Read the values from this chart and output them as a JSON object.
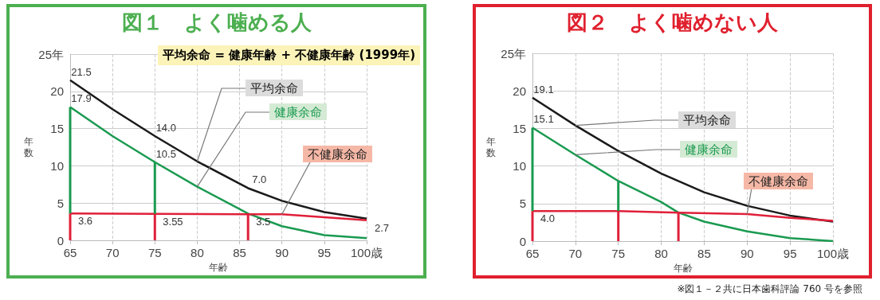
{
  "chart_data": [
    {
      "type": "line",
      "title": "図１　よく噛める人",
      "xlabel": "年齢",
      "ylabel": "年数",
      "annotations": [
        "平均余命 = 健康年齢 + 不健康年齢",
        "(1999年)"
      ],
      "xlim": [
        65,
        100
      ],
      "xticks": [
        65,
        70,
        75,
        80,
        85,
        90,
        95,
        {
          "value": 100,
          "label": "100歳"
        }
      ],
      "ylim": [
        0,
        25
      ],
      "yticks": [
        0,
        5,
        10,
        15,
        20,
        {
          "value": 25,
          "label": "25年"
        }
      ],
      "grid": true,
      "legend": false,
      "marker": "none",
      "series": [
        {
          "name": "平均余命",
          "color": "#1a1a1a",
          "x": [
            65,
            70,
            75,
            80,
            86,
            90,
            95,
            100
          ],
          "values": [
            21.5,
            17.6,
            14.0,
            10.6,
            7.0,
            5.3,
            3.8,
            2.9
          ],
          "value_labels": [
            "21.5",
            null,
            "14.0",
            null,
            "7.0",
            null,
            null,
            null
          ]
        },
        {
          "name": "健康余命",
          "color": "#1a9a50",
          "x": [
            65,
            70,
            75,
            80,
            86,
            90,
            95,
            100
          ],
          "values": [
            17.9,
            14.0,
            10.5,
            7.2,
            3.6,
            1.9,
            0.7,
            0.3
          ],
          "value_labels": [
            "17.9",
            null,
            "10.5",
            null,
            null,
            null,
            null,
            null
          ]
        },
        {
          "name": "不健康余命",
          "color": "#e0203a",
          "x": [
            65,
            75,
            86,
            90,
            95,
            100
          ],
          "values": [
            3.6,
            3.55,
            3.5,
            3.5,
            3.1,
            2.7
          ],
          "value_labels": [
            "3.6",
            "3.55",
            "3.5",
            null,
            null,
            "2.7"
          ]
        },
        {
          "color": "#1a9a50",
          "x": [
            65,
            65
          ],
          "values": [
            3.6,
            17.9
          ]
        },
        {
          "color": "#1a9a50",
          "x": [
            75,
            75
          ],
          "values": [
            3.55,
            10.5
          ]
        },
        {
          "color": "#e0203a",
          "x": [
            65,
            65
          ],
          "values": [
            0,
            3.6
          ]
        },
        {
          "color": "#e0203a",
          "x": [
            75,
            75
          ],
          "values": [
            0,
            3.55
          ]
        },
        {
          "color": "#e0203a",
          "x": [
            86,
            86
          ],
          "values": [
            0,
            3.5
          ]
        }
      ]
    },
    {
      "type": "line",
      "title": "図２　よく噛めない人",
      "xlabel": "年齢",
      "ylabel": "年数",
      "annotations": [
        "※図１－２共に日本歯科評論 760 号を参照"
      ],
      "xlim": [
        65,
        100
      ],
      "xticks": [
        65,
        70,
        75,
        80,
        85,
        90,
        95,
        {
          "value": 100,
          "label": "100歳"
        }
      ],
      "ylim": [
        0,
        25
      ],
      "yticks": [
        0,
        5,
        10,
        15,
        20,
        {
          "value": 25,
          "label": "25年"
        }
      ],
      "grid": true,
      "legend": false,
      "marker": "none",
      "series": [
        {
          "name": "平均余命",
          "color": "#1a1a1a",
          "x": [
            65,
            70,
            75,
            80,
            85,
            90,
            95,
            100
          ],
          "values": [
            19.1,
            15.4,
            12.0,
            9.0,
            6.5,
            4.7,
            3.4,
            2.6
          ],
          "value_labels": [
            "19.1",
            null,
            null,
            null,
            null,
            null,
            null,
            null
          ]
        },
        {
          "name": "健康余命",
          "color": "#1a9a50",
          "x": [
            65,
            70,
            75,
            80,
            82,
            85,
            90,
            95,
            100
          ],
          "values": [
            15.1,
            11.5,
            8.0,
            5.2,
            3.8,
            2.6,
            1.3,
            0.4,
            0.0
          ],
          "value_labels": [
            "15.1",
            null,
            null,
            null,
            null,
            null,
            null,
            null,
            null
          ]
        },
        {
          "name": "不健康余命",
          "color": "#e0203a",
          "x": [
            65,
            75,
            82,
            90,
            95,
            100
          ],
          "values": [
            4.0,
            4.0,
            3.8,
            3.6,
            3.1,
            2.7
          ],
          "value_labels": [
            "4.0",
            null,
            null,
            null,
            null,
            null
          ]
        },
        {
          "color": "#1a9a50",
          "x": [
            65,
            65
          ],
          "values": [
            4.0,
            15.1
          ]
        },
        {
          "color": "#1a9a50",
          "x": [
            75,
            75
          ],
          "values": [
            4.0,
            8.0
          ]
        },
        {
          "color": "#e0203a",
          "x": [
            65,
            65
          ],
          "values": [
            0,
            4.0
          ]
        },
        {
          "color": "#e0203a",
          "x": [
            75,
            75
          ],
          "values": [
            0,
            4.0
          ]
        },
        {
          "color": "#e0203a",
          "x": [
            82,
            82
          ],
          "values": [
            0,
            3.8
          ]
        }
      ]
    }
  ]
}
